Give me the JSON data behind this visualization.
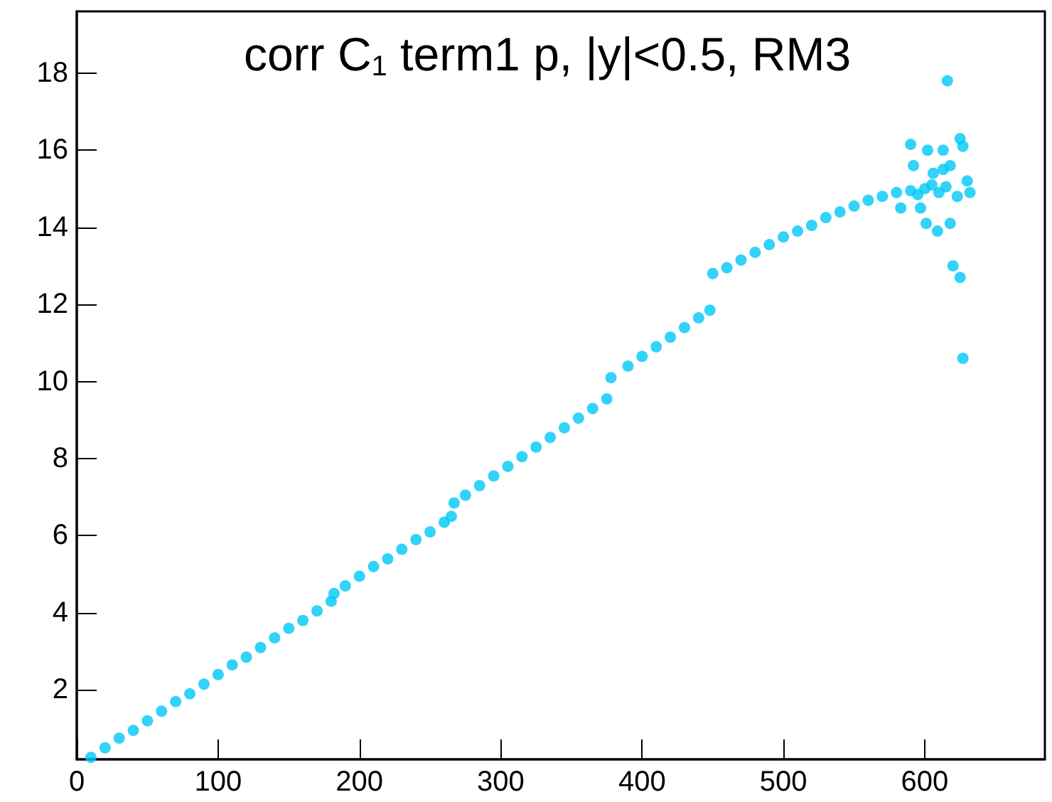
{
  "chart_data": {
    "type": "scatter",
    "title": "corr C$_{1}$ term1 p, |y|<0.5, RM3",
    "x": [
      10,
      20,
      30,
      40,
      50,
      60,
      70,
      80,
      90,
      100,
      110,
      120,
      130,
      140,
      150,
      160,
      170,
      180,
      182,
      190,
      200,
      210,
      220,
      230,
      240,
      250,
      260,
      265,
      267,
      275,
      285,
      295,
      305,
      315,
      325,
      335,
      345,
      355,
      365,
      375,
      378,
      390,
      400,
      410,
      420,
      430,
      440,
      448,
      450,
      460,
      470,
      480,
      490,
      500,
      510,
      520,
      530,
      540,
      550,
      560,
      570,
      580,
      590,
      595,
      600,
      605,
      610,
      615,
      616,
      590,
      602,
      613,
      625,
      627,
      592,
      613,
      597,
      601,
      609,
      618,
      620,
      625,
      627,
      630,
      632,
      623,
      583,
      606,
      618
    ],
    "values": [
      0.25,
      0.5,
      0.75,
      0.95,
      1.2,
      1.45,
      1.7,
      1.9,
      2.15,
      2.4,
      2.65,
      2.85,
      3.1,
      3.35,
      3.6,
      3.8,
      4.05,
      4.3,
      4.5,
      4.7,
      4.95,
      5.2,
      5.4,
      5.65,
      5.9,
      6.1,
      6.35,
      6.5,
      6.85,
      7.05,
      7.3,
      7.55,
      7.8,
      8.05,
      8.3,
      8.55,
      8.8,
      9.05,
      9.3,
      9.55,
      10.1,
      10.4,
      10.65,
      10.9,
      11.15,
      11.4,
      11.65,
      11.85,
      12.8,
      12.95,
      13.15,
      13.35,
      13.55,
      13.75,
      13.9,
      14.05,
      14.25,
      14.4,
      14.55,
      14.7,
      14.8,
      14.9,
      14.95,
      14.85,
      15.0,
      15.1,
      14.9,
      15.05,
      17.8,
      16.15,
      16.0,
      16.0,
      16.3,
      16.1,
      15.6,
      15.5,
      14.5,
      14.1,
      13.9,
      14.1,
      13.0,
      12.7,
      10.6,
      15.2,
      14.9,
      14.8,
      14.5,
      15.4,
      15.6
    ],
    "color": "#00c8f8",
    "marker": "circle",
    "xlim": [
      0,
      685
    ],
    "xticks": [
      0,
      100,
      200,
      300,
      400,
      500,
      600
    ],
    "ylim": [
      0.2,
      19.6
    ],
    "yticks": [
      2,
      4,
      6,
      8,
      10,
      12,
      14,
      16,
      18
    ]
  }
}
